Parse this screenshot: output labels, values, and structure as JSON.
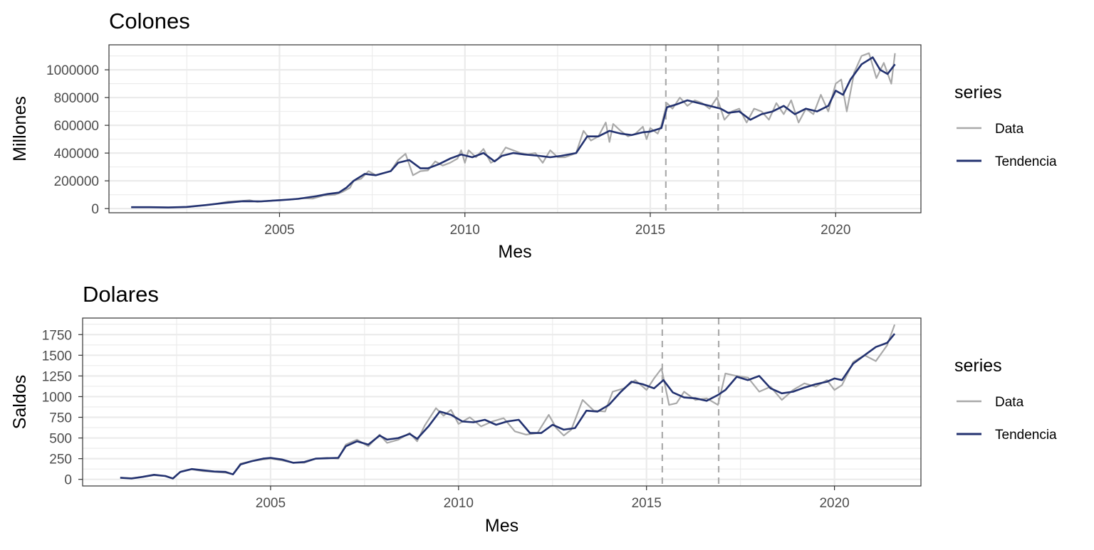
{
  "chart_data": [
    {
      "type": "line",
      "title": "Colones",
      "xlabel": "Mes",
      "ylabel": "Millones",
      "xlim": [
        2000.4,
        2022.3
      ],
      "ylim": [
        -30000,
        1180000
      ],
      "x_ticks": [
        2005,
        2010,
        2015,
        2020
      ],
      "x_tick_labels": [
        "2005",
        "2010",
        "2015",
        "2020"
      ],
      "y_ticks": [
        0,
        200000,
        400000,
        600000,
        800000,
        1000000
      ],
      "y_tick_labels": [
        "0",
        "200000",
        "400000",
        "600000",
        "800000",
        "1000000"
      ],
      "vertical_lines": [
        2015.42,
        2016.83
      ],
      "grid": true,
      "legend": {
        "title": "series",
        "position": "right",
        "entries": [
          "Data",
          "Tendencia"
        ]
      },
      "colors": {
        "Data": "#a9a9a9",
        "Tendencia": "#233270"
      },
      "series": [
        {
          "name": "Data",
          "x": [
            2001.0,
            2001.5,
            2002.0,
            2002.5,
            2003.0,
            2003.3,
            2003.6,
            2004.0,
            2004.2,
            2004.4,
            2004.7,
            2005.0,
            2005.3,
            2005.6,
            2005.9,
            2006.2,
            2006.5,
            2006.7,
            2006.9,
            2007.0,
            2007.2,
            2007.4,
            2007.6,
            2007.8,
            2008.0,
            2008.2,
            2008.4,
            2008.6,
            2008.8,
            2009.0,
            2009.2,
            2009.4,
            2009.6,
            2009.8,
            2009.9,
            2010.0,
            2010.1,
            2010.3,
            2010.5,
            2010.7,
            2010.9,
            2011.1,
            2011.3,
            2011.5,
            2011.7,
            2011.9,
            2012.1,
            2012.3,
            2012.5,
            2012.7,
            2012.9,
            2013.0,
            2013.2,
            2013.4,
            2013.6,
            2013.8,
            2013.9,
            2014.0,
            2014.2,
            2014.4,
            2014.6,
            2014.8,
            2014.9,
            2015.0,
            2015.2,
            2015.3,
            2015.45,
            2015.6,
            2015.8,
            2016.0,
            2016.2,
            2016.4,
            2016.6,
            2016.8,
            2017.0,
            2017.2,
            2017.4,
            2017.6,
            2017.8,
            2018.0,
            2018.2,
            2018.4,
            2018.6,
            2018.8,
            2019.0,
            2019.2,
            2019.4,
            2019.6,
            2019.8,
            2020.0,
            2020.15,
            2020.3,
            2020.5,
            2020.7,
            2020.9,
            2021.1,
            2021.3,
            2021.5,
            2021.6
          ],
          "values": [
            10000,
            10000,
            8000,
            10000,
            25000,
            35000,
            50000,
            55000,
            60000,
            48000,
            55000,
            62000,
            65000,
            75000,
            72000,
            95000,
            100000,
            120000,
            150000,
            200000,
            215000,
            270000,
            240000,
            255000,
            270000,
            350000,
            395000,
            240000,
            270000,
            275000,
            340000,
            310000,
            330000,
            360000,
            420000,
            330000,
            420000,
            370000,
            430000,
            330000,
            360000,
            440000,
            420000,
            400000,
            390000,
            400000,
            330000,
            420000,
            370000,
            370000,
            390000,
            400000,
            560000,
            490000,
            520000,
            620000,
            480000,
            610000,
            560000,
            520000,
            540000,
            590000,
            500000,
            580000,
            540000,
            600000,
            760000,
            720000,
            800000,
            740000,
            780000,
            760000,
            720000,
            800000,
            640000,
            700000,
            720000,
            620000,
            720000,
            700000,
            640000,
            760000,
            680000,
            780000,
            620000,
            720000,
            680000,
            820000,
            700000,
            900000,
            930000,
            700000,
            980000,
            1100000,
            1120000,
            940000,
            1050000,
            900000,
            1120000
          ]
        },
        {
          "name": "Tendencia",
          "x": [
            2001.0,
            2001.5,
            2002.0,
            2002.5,
            2003.0,
            2003.5,
            2004.0,
            2004.5,
            2005.0,
            2005.5,
            2006.0,
            2006.3,
            2006.6,
            2006.8,
            2007.0,
            2007.3,
            2007.6,
            2008.0,
            2008.2,
            2008.5,
            2008.8,
            2009.0,
            2009.3,
            2009.6,
            2009.9,
            2010.2,
            2010.5,
            2010.8,
            2011.0,
            2011.3,
            2011.6,
            2012.0,
            2012.3,
            2012.6,
            2013.0,
            2013.3,
            2013.6,
            2013.9,
            2014.2,
            2014.5,
            2014.8,
            2015.0,
            2015.3,
            2015.45,
            2015.7,
            2016.0,
            2016.3,
            2016.6,
            2016.9,
            2017.1,
            2017.4,
            2017.7,
            2018.0,
            2018.3,
            2018.6,
            2018.9,
            2019.2,
            2019.5,
            2019.8,
            2020.0,
            2020.2,
            2020.4,
            2020.7,
            2021.0,
            2021.2,
            2021.4,
            2021.6
          ],
          "values": [
            10000,
            10000,
            8000,
            12000,
            25000,
            40000,
            53000,
            52000,
            60000,
            70000,
            90000,
            105000,
            115000,
            150000,
            200000,
            250000,
            240000,
            270000,
            330000,
            350000,
            290000,
            290000,
            320000,
            360000,
            390000,
            370000,
            400000,
            340000,
            380000,
            400000,
            390000,
            380000,
            370000,
            380000,
            400000,
            520000,
            520000,
            560000,
            540000,
            530000,
            550000,
            555000,
            580000,
            730000,
            750000,
            780000,
            760000,
            740000,
            720000,
            690000,
            700000,
            640000,
            680000,
            700000,
            740000,
            680000,
            720000,
            700000,
            740000,
            850000,
            820000,
            930000,
            1040000,
            1090000,
            1000000,
            970000,
            1040000
          ]
        }
      ]
    },
    {
      "type": "line",
      "title": "Dolares",
      "xlabel": "Mes",
      "ylabel": "Saldos",
      "xlim": [
        2000.0,
        2022.3
      ],
      "ylim": [
        -80,
        1950
      ],
      "x_ticks": [
        2005,
        2010,
        2015,
        2020
      ],
      "x_tick_labels": [
        "2005",
        "2010",
        "2015",
        "2020"
      ],
      "y_ticks": [
        0,
        250,
        500,
        750,
        1000,
        1250,
        1500,
        1750
      ],
      "y_tick_labels": [
        "0",
        "250",
        "500",
        "750",
        "1000",
        "1250",
        "1500",
        "1750"
      ],
      "vertical_lines": [
        2015.42,
        2016.92
      ],
      "grid": true,
      "legend": {
        "title": "series",
        "position": "right",
        "entries": [
          "Data",
          "Tendencia"
        ]
      },
      "colors": {
        "Data": "#a9a9a9",
        "Tendencia": "#233270"
      },
      "series": [
        {
          "name": "Data",
          "x": [
            2001.0,
            2001.3,
            2001.6,
            2001.9,
            2002.2,
            2002.4,
            2002.6,
            2002.9,
            2003.2,
            2003.5,
            2003.8,
            2004.0,
            2004.2,
            2004.5,
            2004.8,
            2005.0,
            2005.3,
            2005.6,
            2005.9,
            2006.2,
            2006.5,
            2006.8,
            2007.0,
            2007.3,
            2007.6,
            2007.9,
            2008.1,
            2008.4,
            2008.7,
            2008.9,
            2009.1,
            2009.4,
            2009.6,
            2009.8,
            2010.0,
            2010.3,
            2010.6,
            2010.9,
            2011.2,
            2011.5,
            2011.8,
            2012.1,
            2012.4,
            2012.6,
            2012.8,
            2013.0,
            2013.3,
            2013.6,
            2013.9,
            2014.1,
            2014.4,
            2014.7,
            2015.0,
            2015.2,
            2015.4,
            2015.6,
            2015.8,
            2016.0,
            2016.3,
            2016.6,
            2016.9,
            2017.1,
            2017.4,
            2017.7,
            2018.0,
            2018.3,
            2018.6,
            2018.9,
            2019.2,
            2019.5,
            2019.8,
            2020.0,
            2020.2,
            2020.5,
            2020.8,
            2021.1,
            2021.4,
            2021.6
          ],
          "values": [
            20,
            15,
            30,
            50,
            40,
            10,
            90,
            120,
            100,
            90,
            80,
            60,
            190,
            220,
            240,
            250,
            230,
            200,
            200,
            250,
            260,
            250,
            420,
            480,
            400,
            540,
            440,
            480,
            560,
            460,
            650,
            860,
            770,
            840,
            670,
            750,
            640,
            700,
            740,
            580,
            540,
            560,
            780,
            620,
            530,
            600,
            960,
            830,
            820,
            1060,
            1100,
            1200,
            1080,
            1220,
            1340,
            900,
            920,
            1060,
            960,
            980,
            900,
            1280,
            1250,
            1230,
            1060,
            1120,
            960,
            1080,
            1160,
            1120,
            1200,
            1080,
            1140,
            1420,
            1500,
            1430,
            1620,
            1870
          ]
        },
        {
          "name": "Tendencia",
          "x": [
            2001.0,
            2001.3,
            2001.6,
            2001.9,
            2002.2,
            2002.4,
            2002.6,
            2002.9,
            2003.2,
            2003.5,
            2003.8,
            2004.0,
            2004.2,
            2004.5,
            2004.8,
            2005.0,
            2005.3,
            2005.6,
            2005.9,
            2006.2,
            2006.5,
            2006.8,
            2007.0,
            2007.3,
            2007.6,
            2007.9,
            2008.1,
            2008.4,
            2008.7,
            2008.9,
            2009.2,
            2009.5,
            2009.8,
            2010.1,
            2010.4,
            2010.7,
            2011.0,
            2011.3,
            2011.6,
            2011.9,
            2012.2,
            2012.5,
            2012.8,
            2013.1,
            2013.4,
            2013.7,
            2014.0,
            2014.3,
            2014.6,
            2014.9,
            2015.2,
            2015.45,
            2015.7,
            2016.0,
            2016.3,
            2016.6,
            2016.9,
            2017.1,
            2017.4,
            2017.7,
            2018.0,
            2018.3,
            2018.6,
            2018.9,
            2019.2,
            2019.5,
            2019.8,
            2020.0,
            2020.2,
            2020.5,
            2020.8,
            2021.1,
            2021.4,
            2021.6
          ],
          "values": [
            20,
            10,
            30,
            55,
            40,
            10,
            90,
            125,
            110,
            95,
            90,
            60,
            180,
            220,
            250,
            260,
            240,
            200,
            210,
            250,
            255,
            260,
            400,
            460,
            420,
            530,
            480,
            500,
            550,
            490,
            640,
            820,
            780,
            700,
            690,
            720,
            660,
            700,
            720,
            560,
            560,
            660,
            600,
            620,
            830,
            820,
            900,
            1050,
            1180,
            1150,
            1100,
            1200,
            1050,
            990,
            980,
            950,
            1020,
            1080,
            1240,
            1200,
            1250,
            1100,
            1040,
            1060,
            1110,
            1150,
            1180,
            1220,
            1200,
            1400,
            1500,
            1600,
            1650,
            1760
          ]
        }
      ]
    }
  ]
}
